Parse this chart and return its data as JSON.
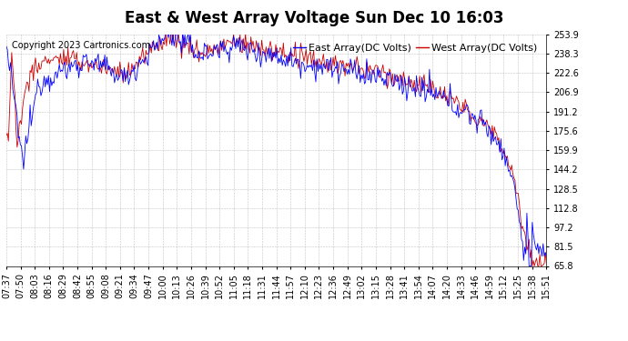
{
  "title": "East & West Array Voltage Sun Dec 10 16:03",
  "copyright": "Copyright 2023 Cartronics.com",
  "legend_east": "East Array(DC Volts)",
  "legend_west": "West Array(DC Volts)",
  "east_color": "#0000FF",
  "west_color": "#CC0000",
  "background_color": "#FFFFFF",
  "plot_bg_color": "#FFFFFF",
  "grid_color": "#999999",
  "ylim": [
    65.8,
    253.9
  ],
  "yticks": [
    65.8,
    81.5,
    97.2,
    112.8,
    128.5,
    144.2,
    159.9,
    175.6,
    191.2,
    206.9,
    222.6,
    238.3,
    253.9
  ],
  "x_labels": [
    "07:37",
    "07:50",
    "08:03",
    "08:16",
    "08:29",
    "08:42",
    "08:55",
    "09:08",
    "09:21",
    "09:34",
    "09:47",
    "10:00",
    "10:13",
    "10:26",
    "10:39",
    "10:52",
    "11:05",
    "11:18",
    "11:31",
    "11:44",
    "11:57",
    "12:10",
    "12:23",
    "12:36",
    "12:49",
    "13:02",
    "13:15",
    "13:28",
    "13:41",
    "13:54",
    "14:07",
    "14:20",
    "14:33",
    "14:46",
    "14:59",
    "15:12",
    "15:25",
    "15:38",
    "15:51"
  ],
  "title_fontsize": 12,
  "axis_fontsize": 7,
  "copyright_fontsize": 7,
  "legend_fontsize": 8
}
